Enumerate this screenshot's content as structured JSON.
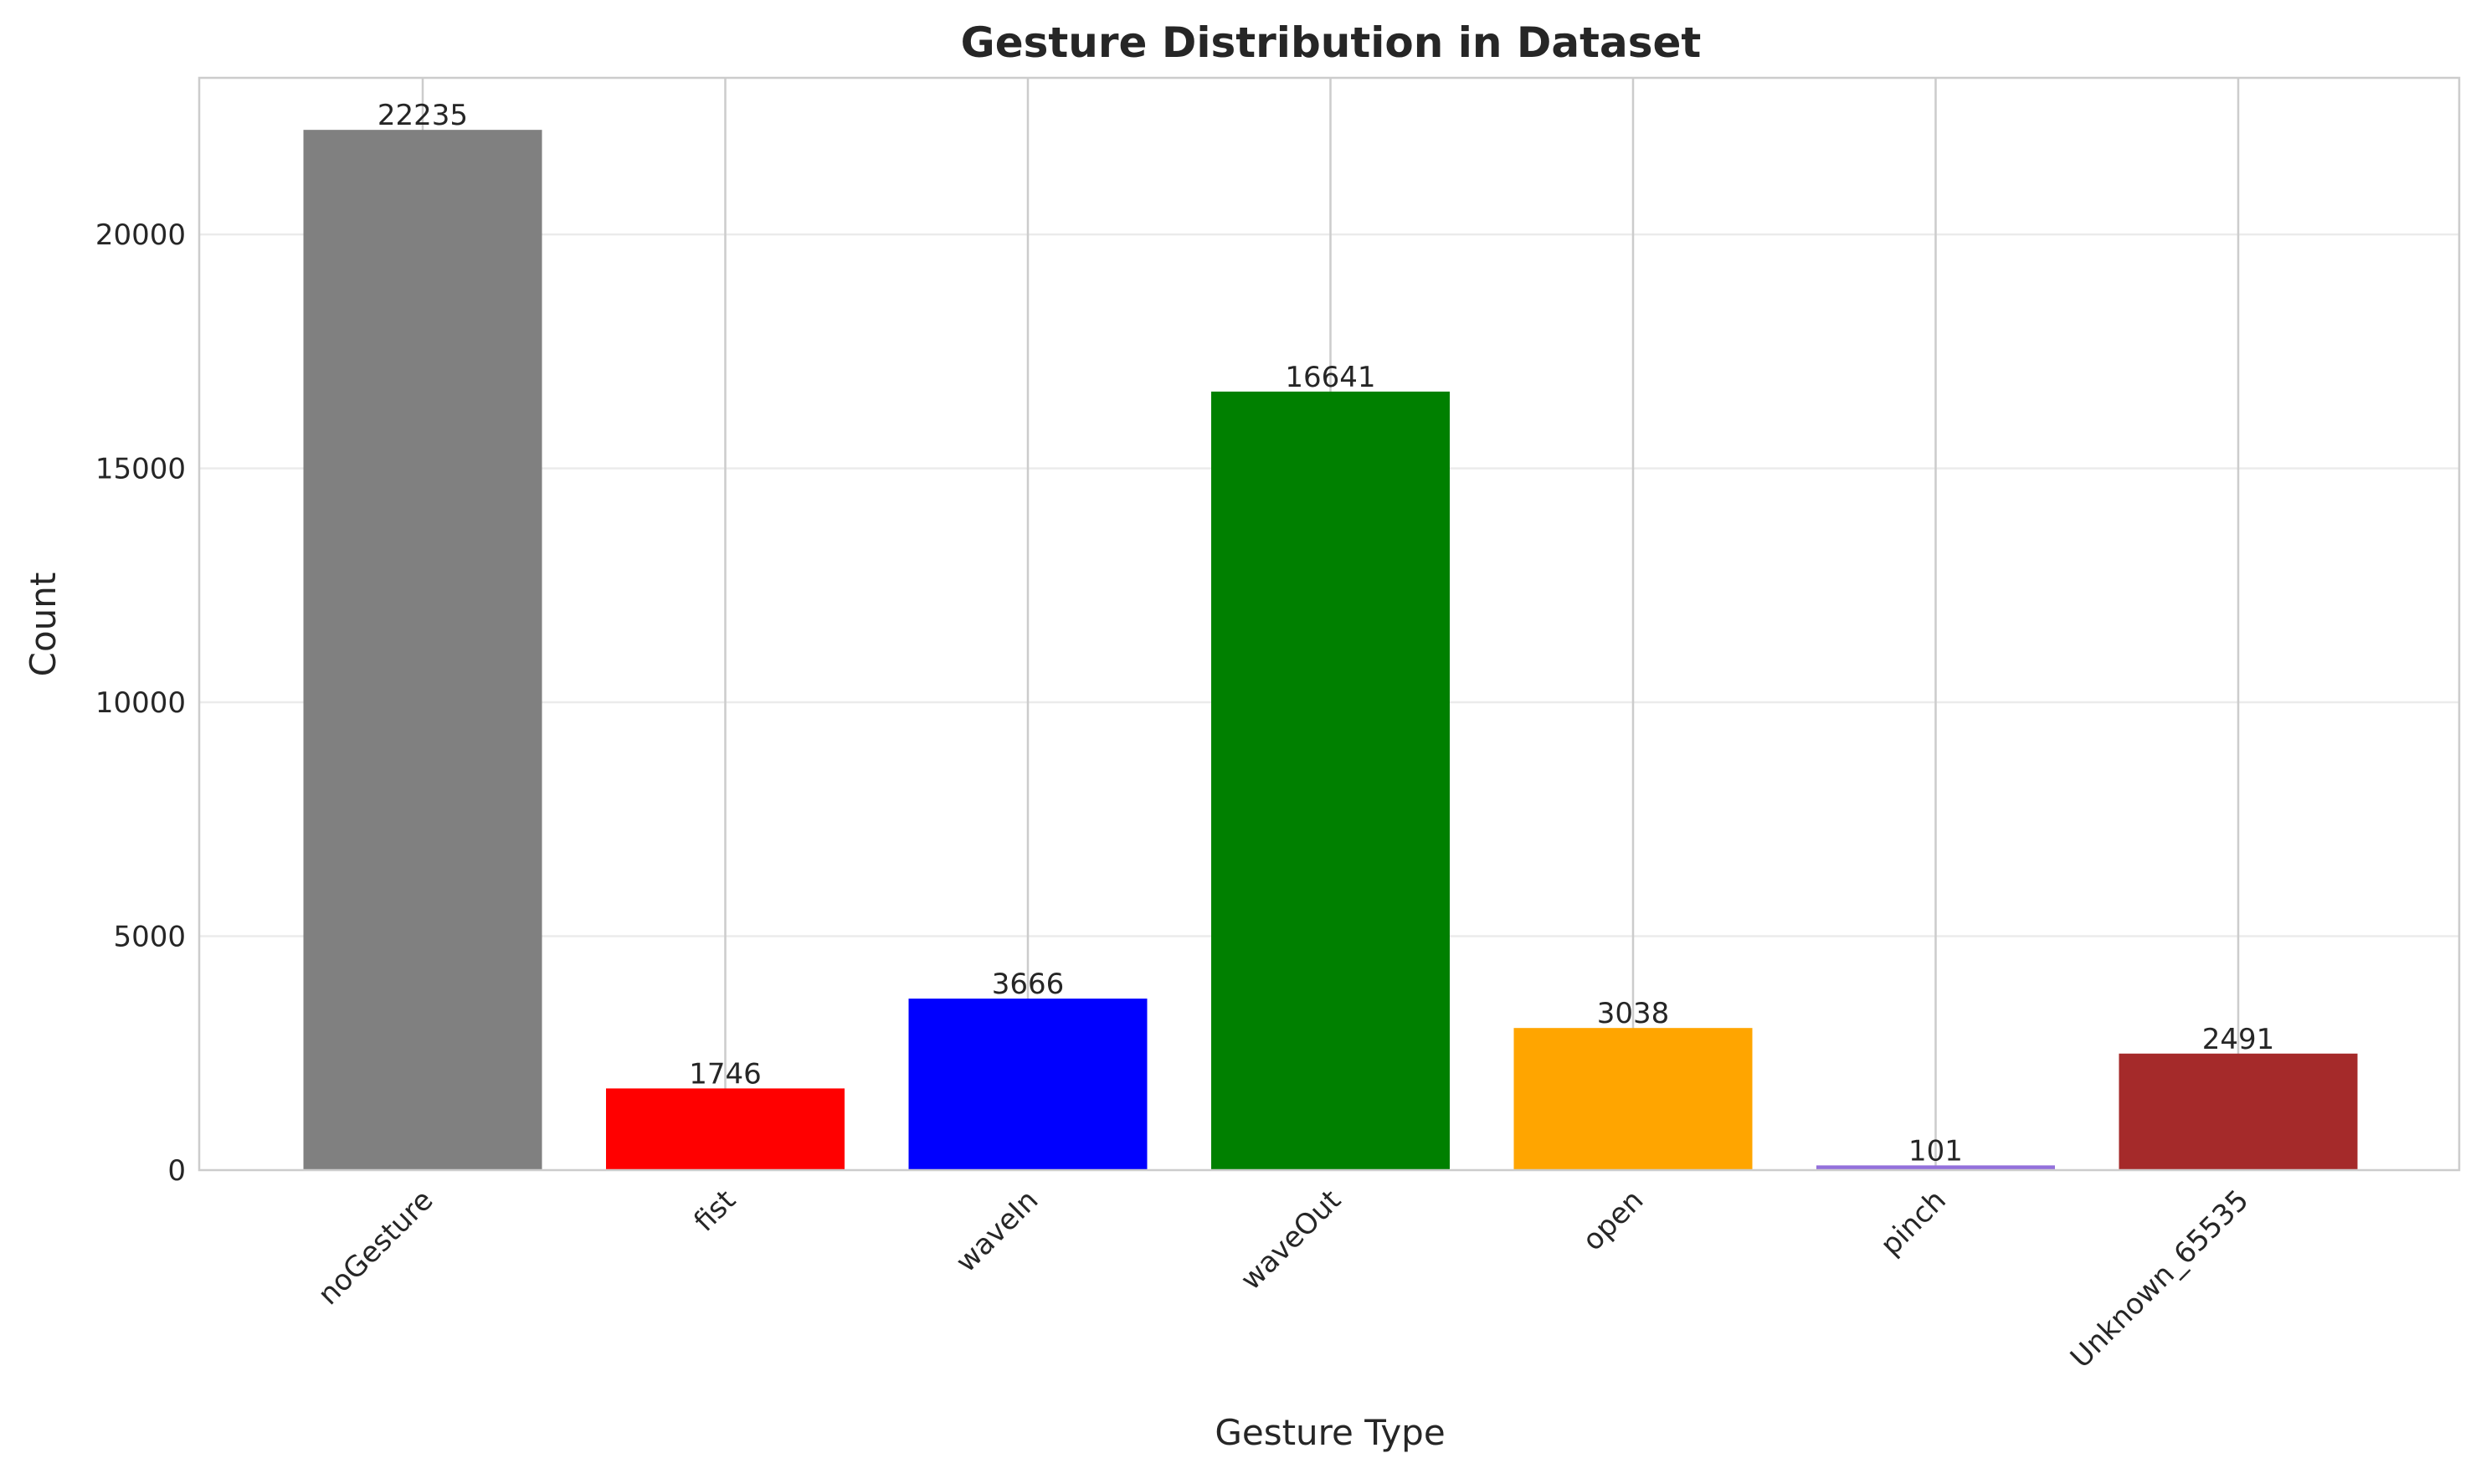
{
  "chart_data": {
    "type": "bar",
    "title": "Gesture Distribution in Dataset",
    "xlabel": "Gesture Type",
    "ylabel": "Count",
    "categories": [
      "noGesture",
      "fist",
      "waveIn",
      "waveOut",
      "open",
      "pinch",
      "Unknown_65535"
    ],
    "values": [
      22235,
      1746,
      3666,
      16641,
      3038,
      101,
      2491
    ],
    "colors": [
      "#808080",
      "#ff0000",
      "#0000ff",
      "#008000",
      "#ffa500",
      "#9370db",
      "#a52a2a"
    ],
    "ylim": [
      0,
      23347
    ],
    "yticks": [
      0,
      5000,
      10000,
      15000,
      20000
    ],
    "grid": true,
    "data_labels": true
  }
}
